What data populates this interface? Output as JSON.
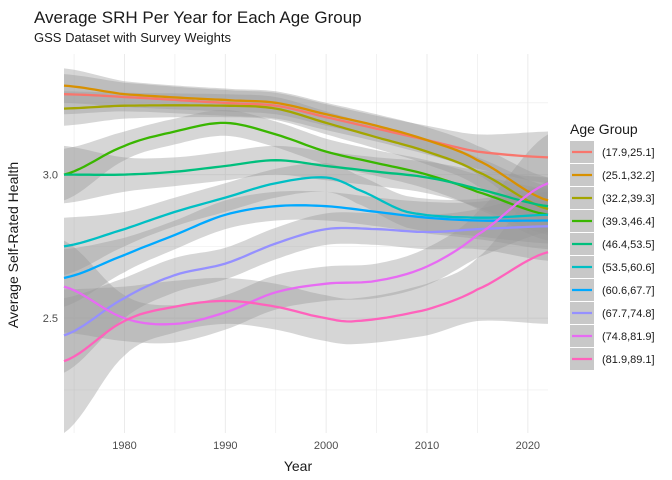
{
  "chart_data": {
    "type": "line",
    "title": "Average SRH Per Year for Each Age Group",
    "subtitle": "GSS Dataset with Survey Weights",
    "xlabel": "Year",
    "ylabel": "Average Self-Rated Health",
    "xlim": [
      1974,
      2022
    ],
    "ylim": [
      2.1,
      3.42
    ],
    "x_ticks": [
      1980,
      1990,
      2000,
      2010,
      2020
    ],
    "y_ticks": [
      2.5,
      3.0
    ],
    "grid": true,
    "legend": {
      "title": "Age Group",
      "placement": "right"
    },
    "series": [
      {
        "name": "(17.9,25.1]",
        "color": "#F8766D",
        "x": [
          1974,
          1980,
          1990,
          1995,
          2000,
          2005,
          2010,
          2015,
          2022
        ],
        "y": [
          3.28,
          3.27,
          3.25,
          3.24,
          3.2,
          3.16,
          3.12,
          3.08,
          3.06
        ],
        "se": [
          0.07,
          0.05,
          0.045,
          0.045,
          0.045,
          0.045,
          0.05,
          0.06,
          0.09
        ]
      },
      {
        "name": "(25.1,32.2]",
        "color": "#D89000",
        "x": [
          1974,
          1980,
          1990,
          1995,
          2000,
          2005,
          2010,
          2015,
          2022
        ],
        "y": [
          3.31,
          3.28,
          3.26,
          3.25,
          3.21,
          3.17,
          3.12,
          3.05,
          2.91
        ],
        "se": [
          0.06,
          0.045,
          0.04,
          0.04,
          0.04,
          0.04,
          0.045,
          0.05,
          0.08
        ]
      },
      {
        "name": "(32.2,39.3]",
        "color": "#A3A500",
        "x": [
          1974,
          1980,
          1990,
          1995,
          2000,
          2005,
          2010,
          2015,
          2022
        ],
        "y": [
          3.23,
          3.24,
          3.24,
          3.23,
          3.18,
          3.13,
          3.08,
          3.01,
          2.88
        ],
        "se": [
          0.06,
          0.045,
          0.04,
          0.04,
          0.04,
          0.04,
          0.045,
          0.05,
          0.08
        ]
      },
      {
        "name": "(39.3,46.4]",
        "color": "#39B600",
        "x": [
          1974,
          1980,
          1985,
          1990,
          1995,
          2000,
          2005,
          2010,
          2015,
          2022
        ],
        "y": [
          3.0,
          3.1,
          3.15,
          3.18,
          3.14,
          3.08,
          3.04,
          3.0,
          2.94,
          2.86
        ],
        "se": [
          0.09,
          0.05,
          0.045,
          0.045,
          0.045,
          0.045,
          0.045,
          0.05,
          0.06,
          0.09
        ]
      },
      {
        "name": "(46.4,53.5]",
        "color": "#00BF7D",
        "x": [
          1974,
          1980,
          1985,
          1990,
          1995,
          2000,
          2005,
          2010,
          2015,
          2022
        ],
        "y": [
          3.0,
          3.0,
          3.01,
          3.03,
          3.05,
          3.03,
          3.01,
          2.99,
          2.95,
          2.89
        ],
        "se": [
          0.1,
          0.06,
          0.05,
          0.05,
          0.05,
          0.05,
          0.05,
          0.055,
          0.065,
          0.1
        ]
      },
      {
        "name": "(53.5,60.6]",
        "color": "#00BFC4",
        "x": [
          1974,
          1980,
          1985,
          1990,
          1995,
          2000,
          2003,
          2008,
          2015,
          2022
        ],
        "y": [
          2.75,
          2.81,
          2.87,
          2.92,
          2.97,
          2.99,
          2.95,
          2.87,
          2.85,
          2.86
        ],
        "se": [
          0.1,
          0.06,
          0.05,
          0.05,
          0.05,
          0.05,
          0.05,
          0.055,
          0.065,
          0.1
        ]
      },
      {
        "name": "(60.6,67.7]",
        "color": "#00A9FF",
        "x": [
          1974,
          1980,
          1985,
          1990,
          1995,
          2000,
          2005,
          2010,
          2015,
          2022
        ],
        "y": [
          2.64,
          2.72,
          2.79,
          2.86,
          2.89,
          2.89,
          2.87,
          2.85,
          2.84,
          2.84
        ],
        "se": [
          0.1,
          0.06,
          0.05,
          0.05,
          0.05,
          0.05,
          0.05,
          0.055,
          0.065,
          0.1
        ]
      },
      {
        "name": "(67.7,74.8]",
        "color": "#9590FF",
        "x": [
          1974,
          1980,
          1985,
          1990,
          1995,
          2000,
          2005,
          2010,
          2015,
          2022
        ],
        "y": [
          2.44,
          2.57,
          2.65,
          2.69,
          2.76,
          2.81,
          2.81,
          2.8,
          2.81,
          2.82
        ],
        "se": [
          0.13,
          0.07,
          0.06,
          0.055,
          0.055,
          0.055,
          0.055,
          0.06,
          0.07,
          0.12
        ]
      },
      {
        "name": "(74.8,81.9]",
        "color": "#E76BF3",
        "x": [
          1974,
          1980,
          1985,
          1990,
          1995,
          2000,
          2005,
          2010,
          2015,
          2022
        ],
        "y": [
          2.61,
          2.5,
          2.48,
          2.52,
          2.59,
          2.62,
          2.63,
          2.68,
          2.79,
          2.97
        ],
        "se": [
          0.16,
          0.08,
          0.065,
          0.06,
          0.06,
          0.06,
          0.06,
          0.065,
          0.08,
          0.17
        ]
      },
      {
        "name": "(81.9,89.1]",
        "color": "#FF62BC",
        "x": [
          1974,
          1980,
          1985,
          1990,
          1995,
          2000,
          2003,
          2010,
          2015,
          2022
        ],
        "y": [
          2.35,
          2.49,
          2.54,
          2.56,
          2.54,
          2.5,
          2.49,
          2.53,
          2.6,
          2.73
        ],
        "se": [
          0.25,
          0.12,
          0.09,
          0.08,
          0.08,
          0.08,
          0.08,
          0.09,
          0.11,
          0.25
        ]
      }
    ]
  }
}
